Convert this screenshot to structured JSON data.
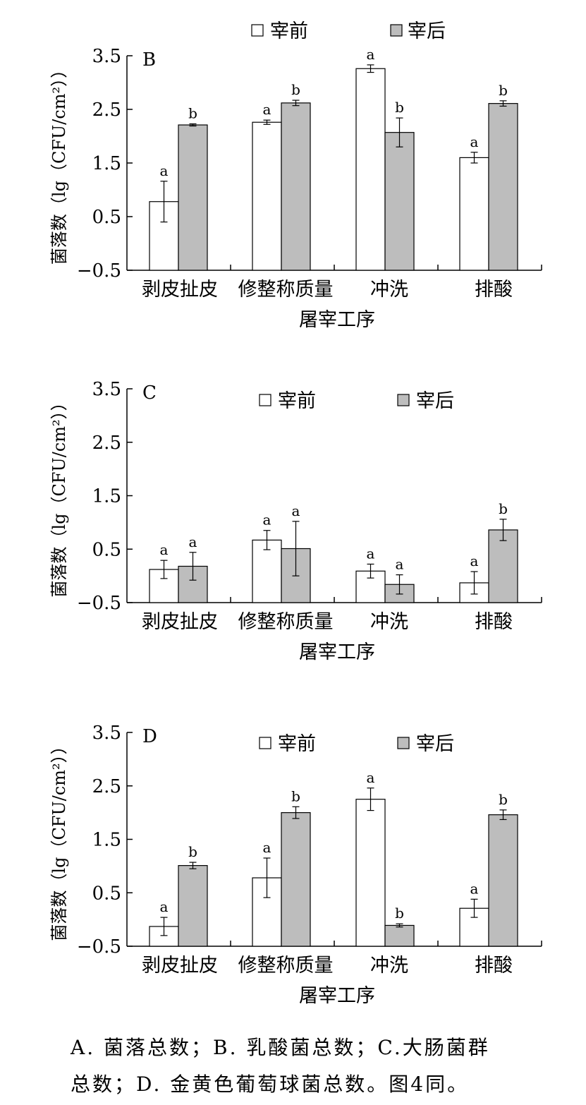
{
  "legend_labels": [
    "宰前",
    "宰后"
  ],
  "colors": {
    "pre": "#ffffff",
    "post": "#bdbdbd",
    "stroke": "#000000"
  },
  "chart_data": [
    {
      "type": "bar",
      "panel_label": "B",
      "categories": [
        "剥皮扯皮",
        "修整称质量",
        "冲洗",
        "排酸"
      ],
      "xlabel": "屠宰工序",
      "ylabel": "菌落数（lg（CFU/cm²））",
      "ylim": [
        -0.5,
        3.5
      ],
      "yticks": [
        "3.5",
        "2.5",
        "1.5",
        "0.5",
        "−0.5"
      ],
      "legend_position": "top",
      "series": [
        {
          "name": "宰前",
          "values": [
            0.78,
            2.26,
            3.26,
            1.6
          ],
          "errors": [
            0.38,
            0.04,
            0.07,
            0.1
          ],
          "letters": [
            "a",
            "a",
            "a",
            "a"
          ]
        },
        {
          "name": "宰后",
          "values": [
            2.21,
            2.62,
            2.07,
            2.61
          ],
          "errors": [
            0.02,
            0.05,
            0.27,
            0.05
          ],
          "letters": [
            "b",
            "b",
            "b",
            "b"
          ]
        }
      ]
    },
    {
      "type": "bar",
      "panel_label": "C",
      "categories": [
        "剥皮扯皮",
        "修整称质量",
        "冲洗",
        "排酸"
      ],
      "xlabel": "屠宰工序",
      "ylabel": "菌落数（lg（CFU/cm²））",
      "ylim": [
        -0.5,
        3.5
      ],
      "yticks": [
        "3.5",
        "2.5",
        "1.5",
        "0.5",
        "−0.5"
      ],
      "legend_position": "top-right",
      "series": [
        {
          "name": "宰前",
          "values": [
            0.12,
            0.67,
            0.09,
            -0.13
          ],
          "errors": [
            0.17,
            0.18,
            0.13,
            0.21
          ],
          "letters": [
            "a",
            "a",
            "a",
            "a"
          ]
        },
        {
          "name": "宰后",
          "values": [
            0.18,
            0.51,
            -0.16,
            0.86
          ],
          "errors": [
            0.26,
            0.51,
            0.18,
            0.2
          ],
          "letters": [
            "a",
            "a",
            "a",
            "b"
          ]
        }
      ]
    },
    {
      "type": "bar",
      "panel_label": "D",
      "categories": [
        "剥皮扯皮",
        "修整称质量",
        "冲洗",
        "排酸"
      ],
      "xlabel": "屠宰工序",
      "ylabel": "菌落数（lg（CFU/cm²））",
      "ylim": [
        -0.5,
        3.5
      ],
      "yticks": [
        "3.5",
        "2.5",
        "1.5",
        "0.5",
        "−0.5"
      ],
      "legend_position": "top-right",
      "series": [
        {
          "name": "宰前",
          "values": [
            -0.13,
            0.78,
            2.25,
            0.21
          ],
          "errors": [
            0.17,
            0.37,
            0.21,
            0.17
          ],
          "letters": [
            "a",
            "a",
            "a",
            "a"
          ]
        },
        {
          "name": "宰后",
          "values": [
            1.01,
            2.0,
            -0.11,
            1.96
          ],
          "errors": [
            0.06,
            0.11,
            0.03,
            0.09
          ],
          "letters": [
            "b",
            "b",
            "b",
            "b"
          ]
        }
      ]
    }
  ],
  "caption": {
    "line1": "A. 菌落总数；B. 乳酸菌总数；C.大肠菌群",
    "line2": "总数；D. 金黄色葡萄球菌总数。图4同。"
  }
}
